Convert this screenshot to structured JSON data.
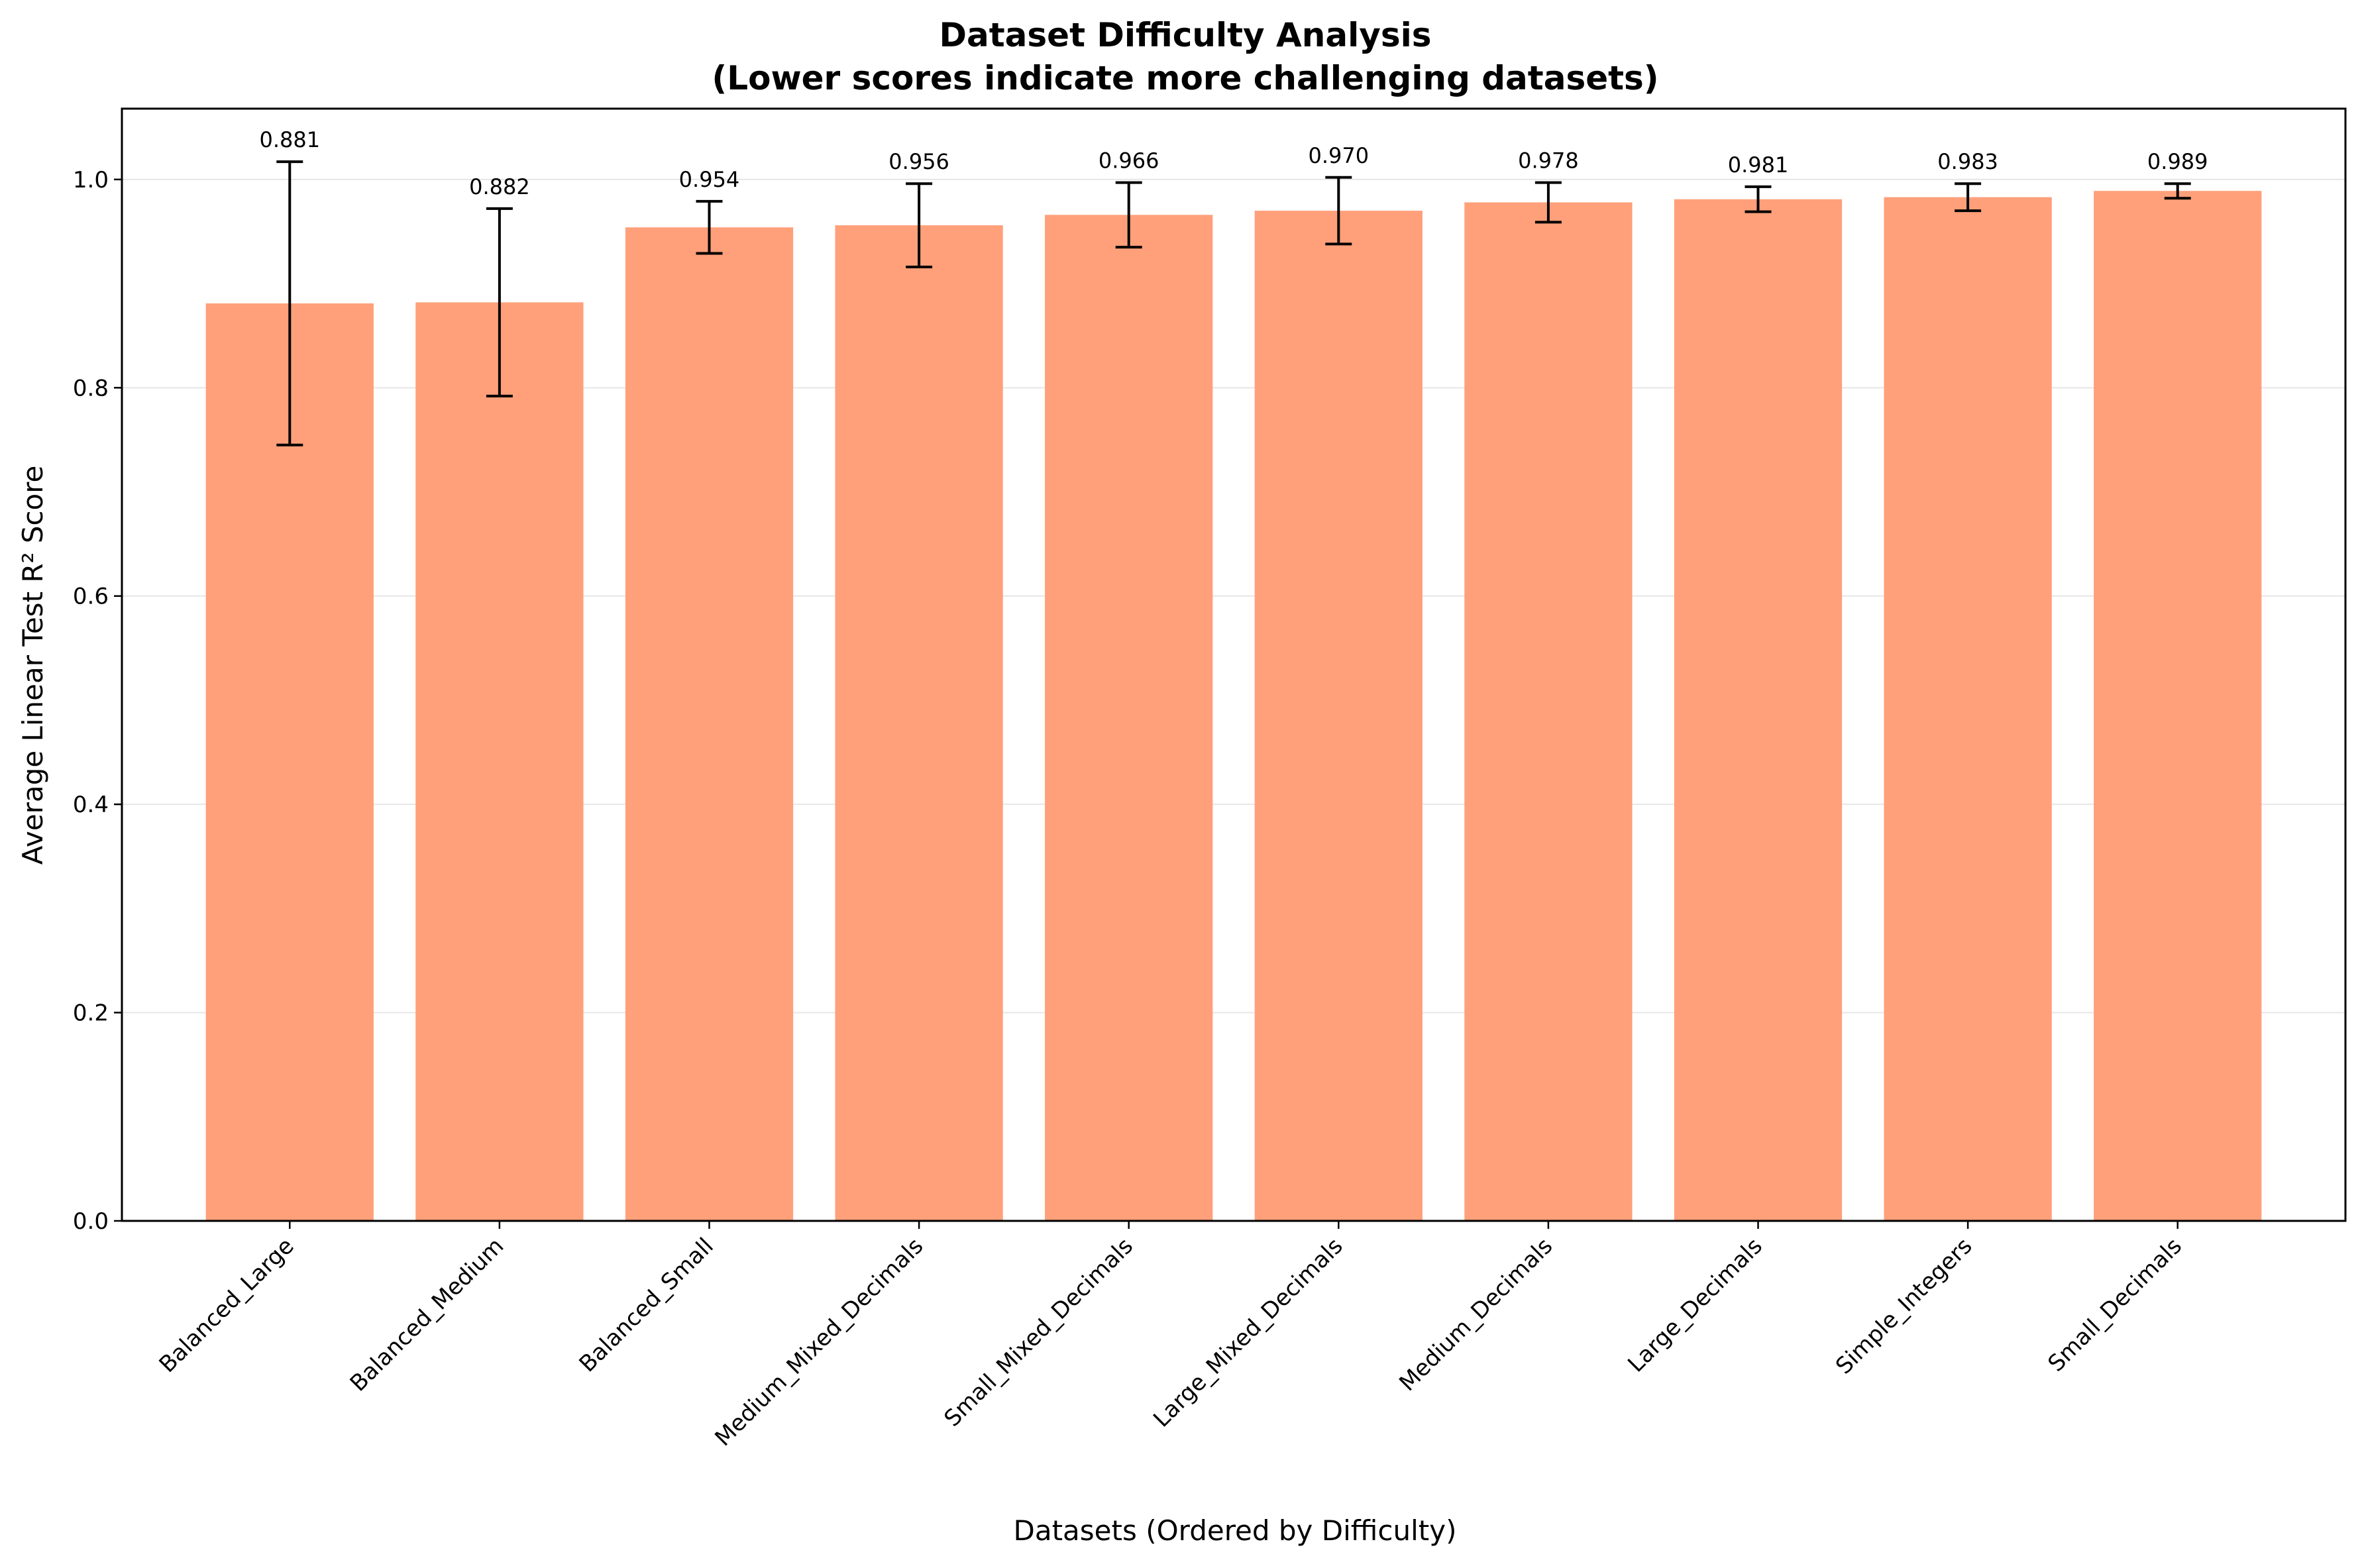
{
  "chart_data": {
    "type": "bar",
    "title_line1": "Dataset Difficulty Analysis",
    "title_line2": "(Lower scores indicate more challenging datasets)",
    "xlabel": "Datasets (Ordered by Difficulty)",
    "ylabel": "Average Linear Test R² Score",
    "ylim": [
      0,
      1.068
    ],
    "yticks": [
      "0.0",
      "0.2",
      "0.4",
      "0.6",
      "0.8",
      "1.0"
    ],
    "grid": "horizontal",
    "bar_color": "#FFA07A",
    "categories": [
      "Balanced_Large",
      "Balanced_Medium",
      "Balanced_Small",
      "Medium_Mixed_Decimals",
      "Small_Mixed_Decimals",
      "Large_Mixed_Decimals",
      "Medium_Decimals",
      "Large_Decimals",
      "Simple_Integers",
      "Small_Decimals"
    ],
    "values": [
      0.881,
      0.882,
      0.954,
      0.956,
      0.966,
      0.97,
      0.978,
      0.981,
      0.983,
      0.989
    ],
    "value_labels": [
      "0.881",
      "0.882",
      "0.954",
      "0.956",
      "0.966",
      "0.970",
      "0.978",
      "0.981",
      "0.983",
      "0.989"
    ],
    "errors": [
      0.136,
      0.09,
      0.025,
      0.04,
      0.031,
      0.032,
      0.019,
      0.012,
      0.013,
      0.007
    ]
  }
}
